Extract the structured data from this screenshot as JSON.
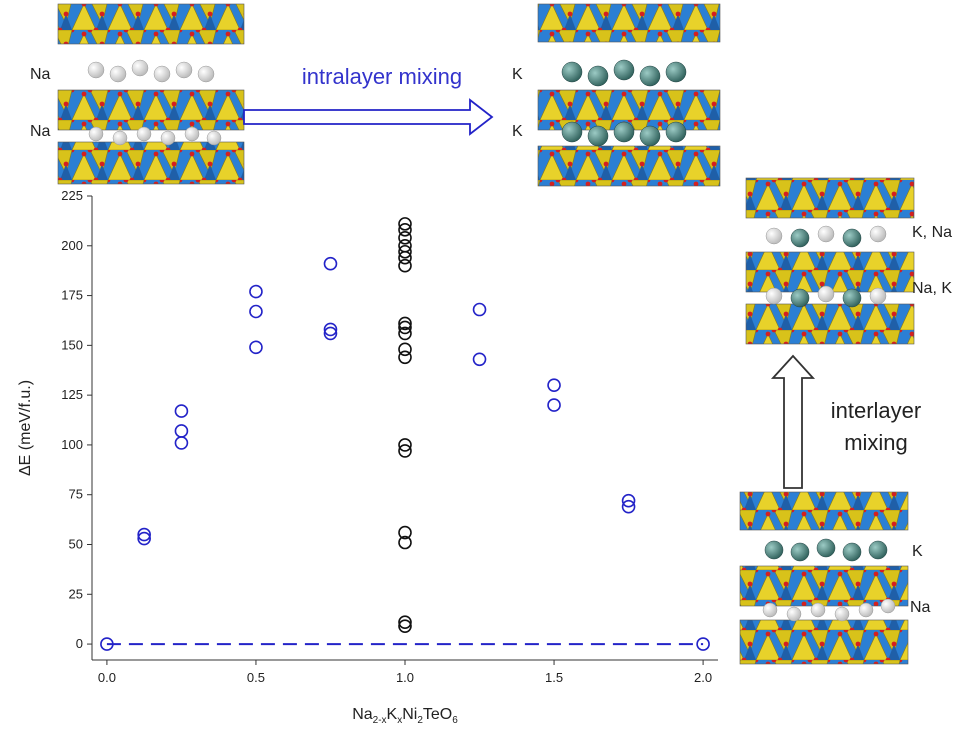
{
  "chart_data": {
    "type": "scatter",
    "xlabel": {
      "base": "Na",
      "s1": "2-x",
      "k": "K",
      "s2": "x",
      "ni": "Ni",
      "s3": "2",
      "te": "TeO",
      "s4": "6"
    },
    "ylabel": "ΔE (meV/f.u.)",
    "xlim": [
      -0.05,
      2.05
    ],
    "ylim": [
      -8,
      225
    ],
    "xticks": [
      "0.0",
      "0.5",
      "1.0",
      "1.5",
      "2.0"
    ],
    "yticks": [
      "0",
      "25",
      "50",
      "75",
      "100",
      "125",
      "150",
      "175",
      "200",
      "225"
    ],
    "grid": false,
    "series": [
      {
        "marker": "open-circle",
        "color": "#2323c8",
        "points": [
          [
            0.0,
            0
          ],
          [
            0.125,
            53
          ],
          [
            0.125,
            55
          ],
          [
            0.25,
            101
          ],
          [
            0.25,
            107
          ],
          [
            0.25,
            117
          ],
          [
            0.5,
            149
          ],
          [
            0.5,
            167
          ],
          [
            0.5,
            177
          ],
          [
            0.75,
            156
          ],
          [
            0.75,
            158
          ],
          [
            0.75,
            191
          ],
          [
            1.25,
            143
          ],
          [
            1.25,
            168
          ],
          [
            1.5,
            120
          ],
          [
            1.5,
            130
          ],
          [
            1.75,
            69
          ],
          [
            1.75,
            72
          ],
          [
            2.0,
            0
          ]
        ]
      },
      {
        "marker": "open-circle",
        "color": "#111111",
        "points": [
          [
            1.0,
            9
          ],
          [
            1.0,
            11
          ],
          [
            1.0,
            51
          ],
          [
            1.0,
            56
          ],
          [
            1.0,
            97
          ],
          [
            1.0,
            100
          ],
          [
            1.0,
            144
          ],
          [
            1.0,
            148
          ],
          [
            1.0,
            156
          ],
          [
            1.0,
            159
          ],
          [
            1.0,
            161
          ],
          [
            1.0,
            190
          ],
          [
            1.0,
            194
          ],
          [
            1.0,
            197
          ],
          [
            1.0,
            200
          ],
          [
            1.0,
            204
          ],
          [
            1.0,
            208
          ],
          [
            1.0,
            211
          ]
        ]
      }
    ],
    "reference_line": {
      "y": 0,
      "style": "dashed",
      "color": "#2323c8"
    }
  },
  "annotations": {
    "intralayer": "intralayer mixing",
    "interlayer_line1": "interlayer",
    "interlayer_line2": "mixing"
  },
  "structures": [
    {
      "id": "top-left",
      "labels": [
        "Na",
        "Na"
      ]
    },
    {
      "id": "top-right",
      "labels": [
        "K",
        "K"
      ]
    },
    {
      "id": "right-mixed",
      "labels": [
        "K, Na",
        "Na, K"
      ]
    },
    {
      "id": "bottom-right",
      "labels": [
        "K",
        "Na"
      ]
    }
  ],
  "colors": {
    "blue_series": "#2323c8",
    "black_series": "#111111",
    "octahedra_blue": "#2b7fd4",
    "tetra_yellow": "#e8d22a",
    "oxygen_red": "#d42020",
    "na_white": "#eeeeee",
    "k_teal": "#3f7f7a"
  }
}
